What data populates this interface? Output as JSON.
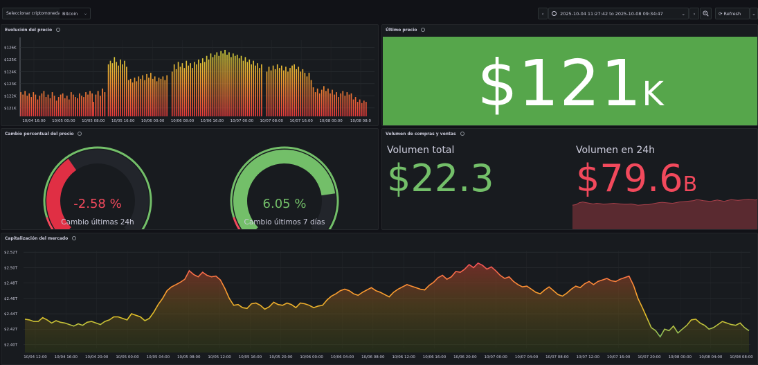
{
  "topbar": {
    "variable_label": "Seleccionar criptomoneda",
    "variable_value": "Bitcoin",
    "time_range": "2025-10-04 11:27:42 to 2025-10-08 09:34:47",
    "refresh_label": "Refresh"
  },
  "colors": {
    "green": "#73bf69",
    "red": "#f2495c",
    "stat_bg_green": "#56a64b",
    "panel_bg": "#181b1f",
    "grid": "#2c3235"
  },
  "panels": {
    "price": {
      "title": "Evolución del precio",
      "y_ticks": [
        "$126K",
        "$125K",
        "$124K",
        "$123K",
        "$122K",
        "$121K"
      ],
      "x_ticks": [
        "10/04 16:00",
        "10/05 00:00",
        "10/05 08:00",
        "10/05 16:00",
        "10/06 00:00",
        "10/06 08:00",
        "10/06 16:00",
        "10/07 00:00",
        "10/07 08:00",
        "10/07 16:00",
        "10/08 00:00",
        "10/08 08:0"
      ]
    },
    "last_price": {
      "title": "Último precio",
      "value": "$121",
      "unit": "K"
    },
    "pct_change": {
      "title": "Cambio porcentual del precio",
      "gauges": [
        {
          "value_text": "-2.58 %",
          "label": "Cambio últimas 24h",
          "value": -2.58,
          "color": "#f2495c"
        },
        {
          "value_text": "6.05 %",
          "label": "Cambio últimos 7 días",
          "value": 6.05,
          "color": "#73bf69"
        }
      ]
    },
    "volume": {
      "title": "Volumen de compras y ventas",
      "total_label": "Volumen total",
      "total_value": "$22.3",
      "day_label": "Volumen en 24h",
      "day_value": "$79.6",
      "day_unit": "B"
    },
    "market_cap": {
      "title": "Capitalización del mercado",
      "y_ticks": [
        "$2.52T",
        "$2.50T",
        "$2.48T",
        "$2.46T",
        "$2.44T",
        "$2.42T",
        "$2.40T"
      ],
      "x_ticks": [
        "10/04 12:00",
        "10/04 16:00",
        "10/04 20:00",
        "10/05 00:00",
        "10/05 04:00",
        "10/05 08:00",
        "10/05 12:00",
        "10/05 16:00",
        "10/05 20:00",
        "10/06 00:00",
        "10/06 04:00",
        "10/06 08:00",
        "10/06 12:00",
        "10/06 16:00",
        "10/06 20:00",
        "10/07 00:00",
        "10/07 04:00",
        "10/07 08:00",
        "10/07 12:00",
        "10/07 16:00",
        "10/07 20:00",
        "10/08 00:00",
        "10/08 04:00",
        "10/08 08:00"
      ]
    }
  },
  "chart_data": [
    {
      "type": "bar",
      "title": "Evolución del precio",
      "ylabel": "",
      "ylim": [
        120.3,
        126.6
      ],
      "unit": "$K",
      "y_ticks": [
        126,
        125,
        124,
        123,
        122,
        121
      ],
      "segments": [
        {
          "x_range": [
            0.0,
            0.207
          ],
          "values": [
            122.3,
            122.1,
            122.4,
            122.0,
            122.2,
            121.9,
            122.3,
            122.1,
            121.7,
            122.0,
            122.2,
            122.4,
            121.9,
            122.1,
            121.8,
            122.3,
            122.0,
            121.6,
            121.9,
            122.1,
            122.2,
            121.8,
            122.0,
            121.7,
            122.3,
            122.1,
            121.9,
            121.8,
            122.2,
            122.0,
            121.9,
            122.3,
            122.1,
            122.4,
            122.2
          ]
        },
        {
          "x_range": [
            0.205,
            0.243
          ],
          "values": [
            121.5,
            122.1,
            122.4,
            122.0,
            122.6,
            122.3
          ]
        },
        {
          "x_range": [
            0.247,
            0.418
          ],
          "values": [
            124.6,
            124.9,
            124.7,
            125.2,
            124.8,
            124.5,
            125.0,
            124.6,
            124.9,
            124.4,
            123.3,
            123.4,
            123.1,
            123.5,
            123.2,
            123.6,
            123.4,
            123.7,
            123.3,
            123.8,
            123.5,
            123.9,
            123.4,
            123.6,
            123.2,
            123.5,
            123.4,
            123.6,
            123.3,
            123.7
          ]
        },
        {
          "x_range": [
            0.427,
            0.685
          ],
          "values": [
            124.0,
            124.6,
            124.2,
            124.8,
            124.4,
            124.7,
            124.3,
            124.9,
            124.5,
            124.7,
            124.3,
            124.8,
            124.6,
            125.0,
            124.7,
            125.1,
            124.8,
            125.3,
            125.0,
            125.5,
            125.2,
            125.4,
            125.6,
            125.3,
            125.7,
            125.5,
            125.8,
            125.4,
            125.6,
            125.2,
            125.5,
            125.3,
            125.4,
            125.1,
            125.3,
            124.9,
            125.2,
            124.8,
            125.0,
            124.6,
            124.9,
            124.5,
            124.7,
            124.3,
            124.6
          ]
        },
        {
          "x_range": [
            0.694,
            0.98
          ],
          "values": [
            124.0,
            124.4,
            124.1,
            124.5,
            124.2,
            124.6,
            124.3,
            124.5,
            124.1,
            124.4,
            124.0,
            124.3,
            124.5,
            124.6,
            124.2,
            124.4,
            124.0,
            124.2,
            123.9,
            123.6,
            123.9,
            123.3,
            122.7,
            122.3,
            122.6,
            122.2,
            122.5,
            122.8,
            122.4,
            122.6,
            122.2,
            122.5,
            122.1,
            122.3,
            121.9,
            122.2,
            122.4,
            122.0,
            122.3,
            122.1,
            122.2,
            121.7,
            121.9,
            121.5,
            121.7,
            121.4,
            121.6,
            121.5
          ]
        }
      ]
    },
    {
      "type": "area",
      "title": "Capitalización del mercado",
      "ylabel": "",
      "ylim": [
        2.395,
        2.522
      ],
      "unit": "$T",
      "y_ticks": [
        2.52,
        2.5,
        2.48,
        2.46,
        2.44,
        2.42,
        2.4
      ],
      "x_range": [
        "10/04 11:27",
        "10/08 09:34"
      ],
      "values": [
        2.433,
        2.432,
        2.43,
        2.43,
        2.435,
        2.432,
        2.428,
        2.431,
        2.429,
        2.428,
        2.426,
        2.424,
        2.427,
        2.425,
        2.429,
        2.43,
        2.428,
        2.426,
        2.43,
        2.432,
        2.436,
        2.436,
        2.434,
        2.432,
        2.44,
        2.438,
        2.436,
        2.431,
        2.434,
        2.442,
        2.452,
        2.46,
        2.47,
        2.475,
        2.478,
        2.481,
        2.485,
        2.496,
        2.491,
        2.488,
        2.494,
        2.49,
        2.488,
        2.489,
        2.484,
        2.473,
        2.46,
        2.451,
        2.452,
        2.448,
        2.447,
        2.453,
        2.454,
        2.451,
        2.446,
        2.449,
        2.455,
        2.452,
        2.451,
        2.454,
        2.452,
        2.448,
        2.454,
        2.453,
        2.451,
        2.448,
        2.45,
        2.451,
        2.458,
        2.463,
        2.466,
        2.47,
        2.472,
        2.47,
        2.466,
        2.464,
        2.468,
        2.471,
        2.474,
        2.47,
        2.468,
        2.465,
        2.462,
        2.468,
        2.472,
        2.475,
        2.478,
        2.476,
        2.474,
        2.472,
        2.471,
        2.477,
        2.481,
        2.487,
        2.49,
        2.485,
        2.488,
        2.495,
        2.494,
        2.498,
        2.504,
        2.5,
        2.506,
        2.503,
        2.498,
        2.501,
        2.496,
        2.49,
        2.486,
        2.488,
        2.482,
        2.478,
        2.475,
        2.476,
        2.472,
        2.468,
        2.466,
        2.471,
        2.475,
        2.47,
        2.465,
        2.463,
        2.467,
        2.472,
        2.476,
        2.474,
        2.479,
        2.482,
        2.478,
        2.482,
        2.484,
        2.486,
        2.483,
        2.482,
        2.485,
        2.487,
        2.489,
        2.477,
        2.46,
        2.448,
        2.435,
        2.422,
        2.418,
        2.41,
        2.42,
        2.418,
        2.424,
        2.415,
        2.42,
        2.425,
        2.432,
        2.433,
        2.428,
        2.425,
        2.42,
        2.422,
        2.426,
        2.43,
        2.428,
        2.426,
        2.425,
        2.428,
        2.422,
        2.418
      ]
    },
    {
      "type": "gauge",
      "title": "Cambio porcentual del precio",
      "series": [
        {
          "name": "Cambio últimas 24h",
          "value": -2.58
        },
        {
          "name": "Cambio últimos 7 días",
          "value": 6.05
        }
      ]
    },
    {
      "type": "area",
      "title": "Volumen en 24h",
      "values": [
        0.78,
        0.8,
        0.86,
        0.88,
        0.86,
        0.84,
        0.82,
        0.84,
        0.83,
        0.81,
        0.82,
        0.83,
        0.84,
        0.83,
        0.82,
        0.81,
        0.81,
        0.82,
        0.8,
        0.78,
        0.79,
        0.8,
        0.8,
        0.82,
        0.84,
        0.86,
        0.87,
        0.86,
        0.85,
        0.84,
        0.86,
        0.88,
        0.89,
        0.9,
        0.91,
        0.92,
        0.95,
        0.94,
        0.92,
        0.91,
        0.9,
        0.92,
        0.94,
        0.92,
        0.9,
        0.93,
        0.95,
        0.94,
        0.93,
        0.94,
        0.95,
        0.96,
        0.95,
        0.94,
        0.96
      ]
    }
  ]
}
